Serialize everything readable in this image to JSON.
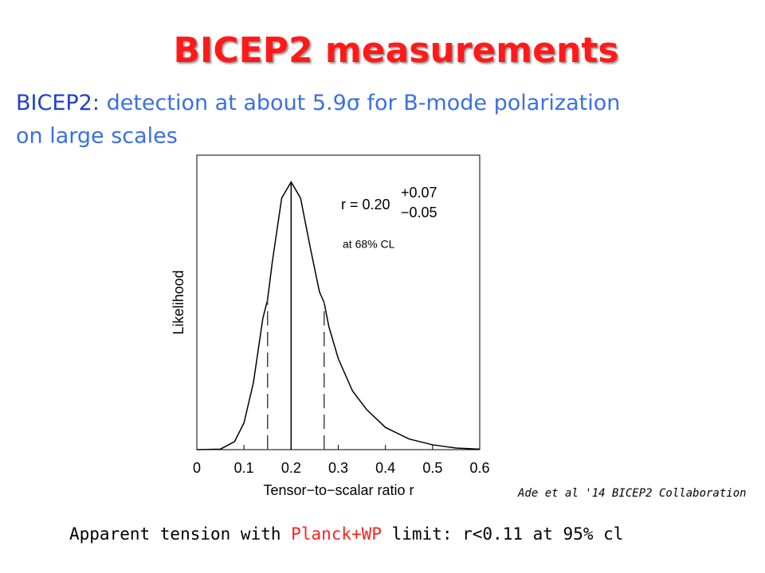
{
  "slide": {
    "title": "BICEP2 measurements",
    "subtitle_lead": "BICEP2:",
    "subtitle_line1": "detection at about 5.9σ for B-mode polarization",
    "subtitle_line2": "on large scales",
    "citation": "Ade et al '14 BICEP2 Collaboration",
    "footer_start": "Apparent tension with",
    "footer_highlight": "Planck+WP",
    "footer_end": "limit: r<0.11 at 95% cl"
  },
  "chart_data": {
    "type": "line",
    "xlabel": "Tensor−to−scalar ratio r",
    "ylabel": "Likelihood",
    "annotation_main": "r = 0.20",
    "annotation_upper": "+0.07",
    "annotation_lower": "−0.05",
    "annotation_cl": "at 68% CL",
    "color": "#000000",
    "x": [
      0,
      0.05,
      0.08,
      0.1,
      0.12,
      0.14,
      0.15,
      0.16,
      0.18,
      0.2,
      0.22,
      0.24,
      0.26,
      0.27,
      0.28,
      0.3,
      0.33,
      0.36,
      0.4,
      0.45,
      0.5,
      0.55,
      0.6
    ],
    "values": [
      0,
      0.002,
      0.03,
      0.1,
      0.25,
      0.49,
      0.56,
      0.7,
      0.94,
      1.0,
      0.94,
      0.76,
      0.59,
      0.55,
      0.46,
      0.34,
      0.22,
      0.15,
      0.083,
      0.04,
      0.018,
      0.006,
      0.002
    ],
    "best_fit": {
      "x": 0.2,
      "height": 1.0
    },
    "interval_lines": [
      {
        "x": 0.15,
        "height": 0.56
      },
      {
        "x": 0.27,
        "height": 0.55
      }
    ],
    "xlim": [
      0,
      0.6
    ],
    "xticks": [
      0,
      0.1,
      0.2,
      0.3,
      0.4,
      0.5,
      0.6
    ],
    "ylim": [
      0,
      1.1
    ]
  }
}
